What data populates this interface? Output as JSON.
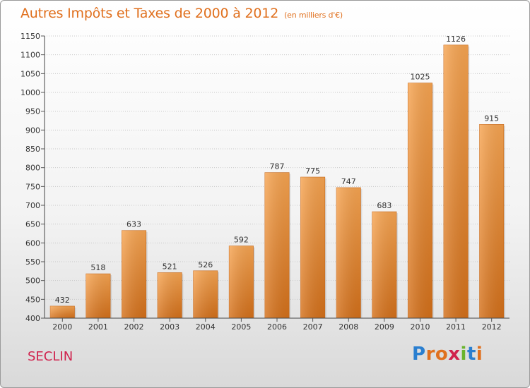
{
  "chart_data": {
    "type": "bar",
    "title": "Autres Impôts et Taxes de 2000 à 2012",
    "subtitle": "(en milliers d'€)",
    "categories": [
      "2000",
      "2001",
      "2002",
      "2003",
      "2004",
      "2005",
      "2006",
      "2007",
      "2008",
      "2009",
      "2010",
      "2011",
      "2012"
    ],
    "values": [
      432,
      518,
      633,
      521,
      526,
      592,
      787,
      775,
      747,
      683,
      1025,
      1126,
      915
    ],
    "ylim": [
      400,
      1150
    ],
    "yticks": [
      400,
      450,
      500,
      550,
      600,
      650,
      700,
      750,
      800,
      850,
      900,
      950,
      1000,
      1050,
      1100,
      1150
    ],
    "grid": true,
    "bar_color": "#f08c32"
  },
  "footer": {
    "city": "SECLIN",
    "logo_text": "Proxiti",
    "logo_colors": [
      "#2a7fd0",
      "#e0701e",
      "#e0701e",
      "#d0224d",
      "#6ab42d",
      "#2a7fd0",
      "#e0701e"
    ]
  }
}
